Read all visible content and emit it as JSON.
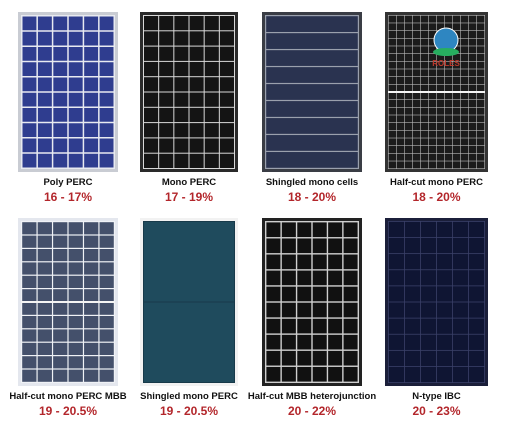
{
  "panels": [
    {
      "name": "Poly PERC",
      "efficiency": "16 - 17%"
    },
    {
      "name": "Mono PERC",
      "efficiency": "17 - 19%"
    },
    {
      "name": "Shingled  mono cells",
      "efficiency": "18 - 20%"
    },
    {
      "name": "Half-cut mono PERC",
      "efficiency": "18 - 20%"
    },
    {
      "name": "Half-cut mono PERC MBB",
      "efficiency": "19 - 20.5%"
    },
    {
      "name": "Shingled mono PERC",
      "efficiency": "19 - 20.5%"
    },
    {
      "name": "Half-cut MBB heterojunction",
      "efficiency": "20 - 22%"
    },
    {
      "name": "N-type IBC",
      "efficiency": "20 - 23%"
    }
  ],
  "logo": "ROLES"
}
